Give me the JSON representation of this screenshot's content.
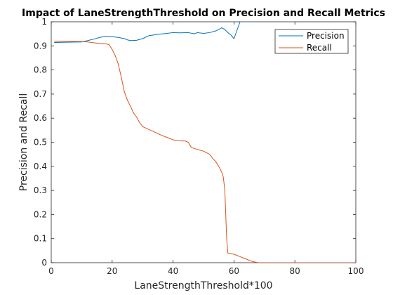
{
  "chart_data": {
    "type": "line",
    "title": "Impact of LaneStrengthThreshold on Precision and Recall Metrics",
    "xlabel": "LaneStrengthThreshold*100",
    "ylabel": "Precision and Recall",
    "xlim": [
      0,
      100
    ],
    "ylim": [
      0,
      1
    ],
    "xticks": [
      0,
      20,
      40,
      60,
      80,
      100
    ],
    "yticks": [
      0,
      0.1,
      0.2,
      0.3,
      0.4,
      0.5,
      0.6,
      0.7,
      0.8,
      0.9,
      1
    ],
    "grid": false,
    "legend_position": "top-right",
    "series": [
      {
        "name": "Precision",
        "color": "#0072BD",
        "x": [
          1,
          5,
          10,
          12,
          14,
          16,
          18,
          20,
          22,
          24,
          25,
          26,
          28,
          30,
          32,
          35,
          38,
          40,
          42,
          45,
          47,
          48,
          50,
          52,
          54,
          55,
          56,
          57,
          58,
          59,
          60,
          61,
          62,
          63,
          64,
          65,
          66
        ],
        "y": [
          0.914,
          0.915,
          0.916,
          0.922,
          0.928,
          0.935,
          0.94,
          0.938,
          0.935,
          0.93,
          0.925,
          0.922,
          0.923,
          0.93,
          0.942,
          0.948,
          0.952,
          0.955,
          0.954,
          0.955,
          0.95,
          0.955,
          0.952,
          0.955,
          0.962,
          0.968,
          0.975,
          0.968,
          0.955,
          0.945,
          0.93,
          0.965,
          1.0,
          1.0,
          1.0,
          1.0,
          1.0
        ]
      },
      {
        "name": "Recall",
        "color": "#D95319",
        "x": [
          1,
          5,
          10,
          12,
          14,
          16,
          18,
          19,
          20,
          21,
          22,
          23,
          24,
          25,
          26,
          27,
          28,
          29,
          30,
          32,
          34,
          36,
          38,
          40,
          42,
          44,
          45,
          46,
          48,
          50,
          52,
          53,
          54,
          55,
          56,
          56.5,
          57,
          57.3,
          57.6,
          58,
          60,
          62,
          64,
          66,
          68,
          70,
          80,
          90,
          100
        ],
        "y": [
          0.919,
          0.919,
          0.918,
          0.916,
          0.913,
          0.91,
          0.908,
          0.905,
          0.885,
          0.86,
          0.825,
          0.77,
          0.71,
          0.675,
          0.65,
          0.622,
          0.605,
          0.582,
          0.565,
          0.553,
          0.542,
          0.53,
          0.52,
          0.51,
          0.506,
          0.505,
          0.5,
          0.478,
          0.47,
          0.463,
          0.45,
          0.433,
          0.42,
          0.4,
          0.375,
          0.355,
          0.3,
          0.2,
          0.1,
          0.04,
          0.035,
          0.025,
          0.015,
          0.005,
          0.0,
          0.0,
          0.0,
          0.0,
          0.0
        ]
      }
    ]
  }
}
